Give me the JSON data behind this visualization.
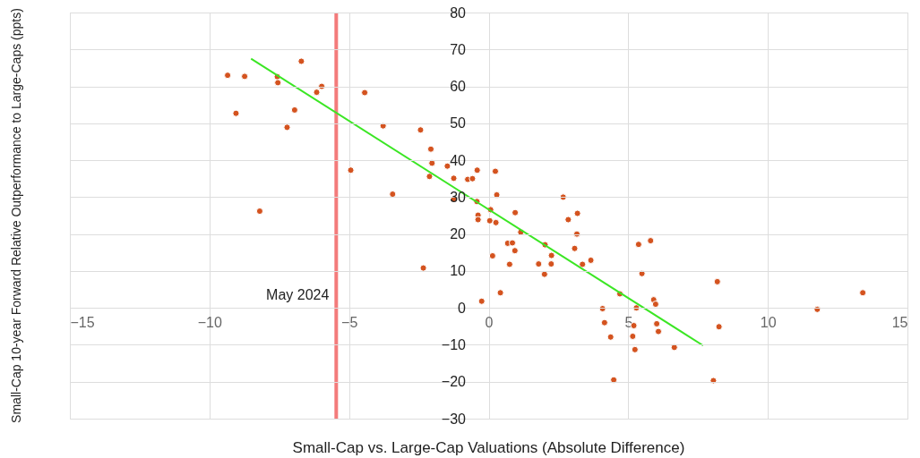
{
  "chart_data": {
    "type": "scatter",
    "xlabel": "Small-Cap vs. Large-Cap Valuations (Absolute Difference)",
    "ylabel": "Small-Cap 10-year Forward Relative Outperformance to Large-Caps (ppts)",
    "xlim": [
      -15,
      15
    ],
    "xticks": [
      -15,
      -10,
      -5,
      0,
      5,
      10,
      15
    ],
    "ylim": [
      -30,
      80
    ],
    "yticks": [
      -30,
      -20,
      -10,
      0,
      10,
      20,
      30,
      40,
      50,
      60,
      70,
      80
    ],
    "grid": true,
    "legend": false,
    "marker": "circle",
    "ref_lines": [
      {
        "axis": "x",
        "value": -5.46,
        "label": "May 2024",
        "color": "#f26d6d"
      }
    ],
    "series": [
      {
        "type": "scatter",
        "color": "#d4531f",
        "x": [
          -9.35,
          -8.74,
          -9.05,
          -8.2,
          -7.57,
          -7.55,
          -6.71,
          -6.95,
          -7.22,
          -6.16,
          -5.98,
          -4.44,
          -4.94,
          -3.78,
          -2.44,
          -3.44,
          -2.07,
          -2.03,
          -2.12,
          -2.34,
          -1.48,
          -1.25,
          -1.25,
          -0.75,
          -0.58,
          -0.41,
          -0.42,
          -0.38,
          -0.38,
          -0.25,
          0.07,
          0.04,
          0.26,
          0.24,
          0.29,
          0.95,
          1.15,
          0.68,
          0.85,
          0.94,
          0.14,
          0.42,
          0.75,
          1.79,
          2.0,
          2.02,
          2.24,
          2.25,
          2.67,
          2.85,
          3.18,
          3.16,
          3.08,
          3.36,
          3.66,
          4.7,
          5.29,
          4.08,
          4.15,
          4.37,
          4.48,
          5.2,
          5.16,
          5.24,
          5.37,
          5.8,
          5.49,
          5.91,
          5.98,
          6.02,
          6.08,
          6.65,
          8.19,
          8.25,
          8.05,
          11.77,
          13.4
        ],
        "values": [
          63,
          62.7,
          52.7,
          26.2,
          62.6,
          61,
          66.8,
          53.6,
          48.9,
          58.4,
          60,
          58.3,
          37.3,
          49.3,
          48.2,
          30.8,
          43,
          39.2,
          35.6,
          10.8,
          38.4,
          35.1,
          29.5,
          34.8,
          35,
          37.3,
          28.8,
          25.1,
          23.9,
          1.8,
          26.6,
          23.6,
          23.1,
          37,
          30.6,
          25.8,
          20.5,
          17.5,
          17.6,
          15.5,
          14.1,
          4.1,
          11.8,
          11.9,
          9.1,
          17.1,
          11.9,
          14.2,
          30,
          23.9,
          25.6,
          20,
          16.1,
          11.8,
          12.9,
          3.8,
          0,
          -0.2,
          -4,
          -7.9,
          -19.5,
          -4.8,
          -7.7,
          -11.3,
          17.2,
          18.2,
          9.3,
          2.2,
          1,
          -4.3,
          -6.4,
          -10.7,
          7.1,
          -5.1,
          -19.7,
          -0.4,
          4.1
        ]
      },
      {
        "type": "line",
        "color": "#3be624",
        "marker": "none",
        "line_style": "solid",
        "x": [
          -8.51,
          7.68
        ],
        "values": [
          67.5,
          -10.2
        ]
      }
    ]
  }
}
